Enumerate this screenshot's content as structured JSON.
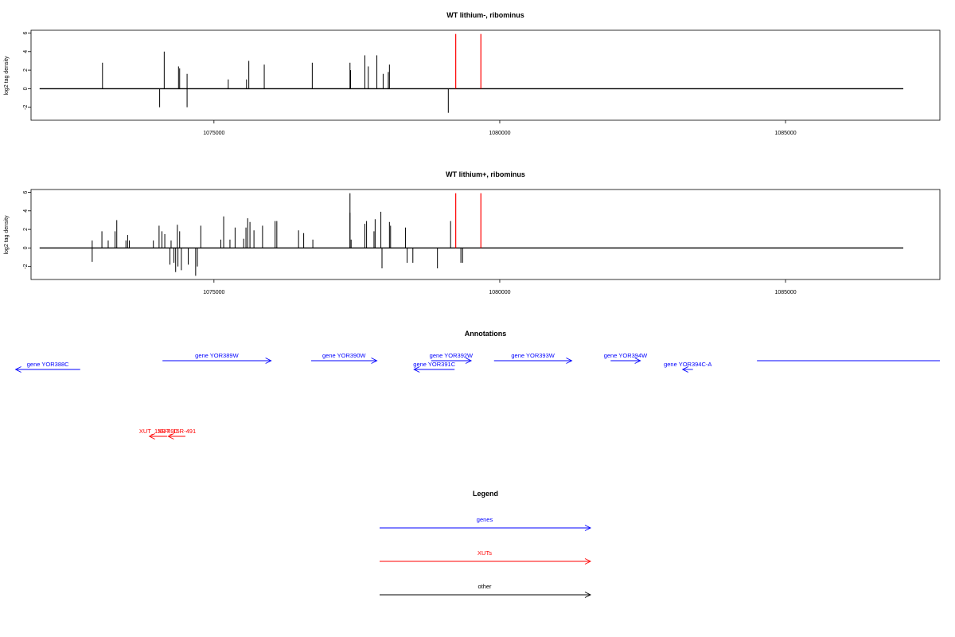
{
  "colors": {
    "genes": "#0000ff",
    "xuts": "#ff0000",
    "other": "#000000",
    "axis": "#000000"
  },
  "chart_data": [
    {
      "type": "bar",
      "title": "WT lithium-, ribominus",
      "ylabel": "log2 tag density",
      "xlim": [
        1071800,
        1087700
      ],
      "ylim": [
        -3.4,
        6.3
      ],
      "yticks": [
        -2,
        0,
        2,
        4,
        6
      ],
      "xticks": [
        1075000,
        1080000,
        1085000
      ],
      "xtick_labels": [
        "1075000",
        "1080000",
        "1085000"
      ],
      "baseline": {
        "from": 1071950,
        "to": 1087060
      },
      "bars": [
        {
          "x": 1073050,
          "y": 2.8
        },
        {
          "x": 1074050,
          "y": -2.0
        },
        {
          "x": 1074130,
          "y": 4.0
        },
        {
          "x": 1074380,
          "y": 2.4
        },
        {
          "x": 1074400,
          "y": 2.2
        },
        {
          "x": 1074530,
          "y": 1.6
        },
        {
          "x": 1074530,
          "y": -2.0
        },
        {
          "x": 1075250,
          "y": 1.0
        },
        {
          "x": 1075570,
          "y": 1.0
        },
        {
          "x": 1075610,
          "y": 3.0
        },
        {
          "x": 1075880,
          "y": 2.6
        },
        {
          "x": 1076720,
          "y": 2.8
        },
        {
          "x": 1077380,
          "y": 2.8
        },
        {
          "x": 1077390,
          "y": 2.0
        },
        {
          "x": 1077640,
          "y": 3.6
        },
        {
          "x": 1077700,
          "y": 2.4
        },
        {
          "x": 1077850,
          "y": 3.6
        },
        {
          "x": 1077960,
          "y": 1.6
        },
        {
          "x": 1078070,
          "y": 2.6
        },
        {
          "x": 1078050,
          "y": 1.8
        },
        {
          "x": 1079100,
          "y": -2.6
        }
      ],
      "highlights": [
        {
          "x": 1079230,
          "y": 5.9
        },
        {
          "x": 1079670,
          "y": 5.9
        }
      ]
    },
    {
      "type": "bar",
      "title": "WT lithium+, ribominus",
      "ylabel": "log2 tag density",
      "xlim": [
        1071800,
        1087700
      ],
      "ylim": [
        -3.4,
        6.3
      ],
      "yticks": [
        -2,
        0,
        2,
        4,
        6
      ],
      "xticks": [
        1075000,
        1080000,
        1085000
      ],
      "xtick_labels": [
        "1075000",
        "1080000",
        "1085000"
      ],
      "baseline": {
        "from": 1071950,
        "to": 1087060
      },
      "bars": [
        {
          "x": 1072870,
          "y": 0.8
        },
        {
          "x": 1072870,
          "y": -1.5
        },
        {
          "x": 1073040,
          "y": 1.8
        },
        {
          "x": 1073150,
          "y": 0.8
        },
        {
          "x": 1073270,
          "y": 1.8
        },
        {
          "x": 1073300,
          "y": 3.0
        },
        {
          "x": 1073460,
          "y": 0.8
        },
        {
          "x": 1073490,
          "y": 1.4
        },
        {
          "x": 1073520,
          "y": 0.8
        },
        {
          "x": 1073940,
          "y": 0.8
        },
        {
          "x": 1074040,
          "y": 2.4
        },
        {
          "x": 1074090,
          "y": 1.8
        },
        {
          "x": 1074140,
          "y": 1.5
        },
        {
          "x": 1074250,
          "y": 0.8
        },
        {
          "x": 1074230,
          "y": -1.8
        },
        {
          "x": 1074300,
          "y": -1.6
        },
        {
          "x": 1074330,
          "y": -2.6
        },
        {
          "x": 1074360,
          "y": 2.5
        },
        {
          "x": 1074370,
          "y": -2.0
        },
        {
          "x": 1074400,
          "y": 1.8
        },
        {
          "x": 1074430,
          "y": -2.4
        },
        {
          "x": 1074550,
          "y": -1.8
        },
        {
          "x": 1074680,
          "y": -3.0
        },
        {
          "x": 1074710,
          "y": -2.0
        },
        {
          "x": 1074770,
          "y": 2.4
        },
        {
          "x": 1075120,
          "y": 0.9
        },
        {
          "x": 1075170,
          "y": 3.4
        },
        {
          "x": 1075280,
          "y": 0.9
        },
        {
          "x": 1075370,
          "y": 2.2
        },
        {
          "x": 1075520,
          "y": 1.0
        },
        {
          "x": 1075560,
          "y": 2.2
        },
        {
          "x": 1075590,
          "y": 3.2
        },
        {
          "x": 1075630,
          "y": 2.8
        },
        {
          "x": 1075700,
          "y": 1.9
        },
        {
          "x": 1075850,
          "y": 2.4
        },
        {
          "x": 1076070,
          "y": 2.9
        },
        {
          "x": 1076100,
          "y": 2.9
        },
        {
          "x": 1076480,
          "y": 1.9
        },
        {
          "x": 1076570,
          "y": 1.6
        },
        {
          "x": 1076730,
          "y": 0.9
        },
        {
          "x": 1077380,
          "y": 5.9
        },
        {
          "x": 1077380,
          "y": 3.8
        },
        {
          "x": 1077400,
          "y": 0.9
        },
        {
          "x": 1077640,
          "y": 2.6
        },
        {
          "x": 1077670,
          "y": 2.9
        },
        {
          "x": 1077800,
          "y": 1.8
        },
        {
          "x": 1077820,
          "y": 3.1
        },
        {
          "x": 1077920,
          "y": 3.9
        },
        {
          "x": 1077940,
          "y": -2.2
        },
        {
          "x": 1078070,
          "y": 2.8
        },
        {
          "x": 1078090,
          "y": 2.4
        },
        {
          "x": 1078350,
          "y": 2.2
        },
        {
          "x": 1078380,
          "y": -1.6
        },
        {
          "x": 1078480,
          "y": -1.6
        },
        {
          "x": 1078910,
          "y": -2.2
        },
        {
          "x": 1079140,
          "y": 2.9
        },
        {
          "x": 1079320,
          "y": -1.6
        },
        {
          "x": 1079350,
          "y": -1.6
        }
      ],
      "highlights": [
        {
          "x": 1079230,
          "y": 5.9
        },
        {
          "x": 1079670,
          "y": 5.9
        }
      ]
    }
  ],
  "annotations": {
    "title": "Annotations",
    "genes": [
      {
        "label": "gene YOR388C",
        "dir": "left",
        "from": 1071530,
        "to": 1072660,
        "row": 2
      },
      {
        "label": "gene YOR389W",
        "dir": "right",
        "from": 1074100,
        "to": 1076000,
        "row": 1
      },
      {
        "label": "gene YOR390W",
        "dir": "right",
        "from": 1076700,
        "to": 1077850,
        "row": 1
      },
      {
        "label": "gene YOR391C",
        "dir": "left",
        "from": 1078500,
        "to": 1079210,
        "row": 2
      },
      {
        "label": "gene YOR392W",
        "dir": "right",
        "from": 1078800,
        "to": 1079500,
        "row": 1
      },
      {
        "label": "gene YOR393W",
        "dir": "right",
        "from": 1079900,
        "to": 1081260,
        "row": 1
      },
      {
        "label": "gene YOR394W",
        "dir": "right",
        "from": 1081940,
        "to": 1082460,
        "row": 1
      },
      {
        "label": "gene YOR394C-A",
        "dir": "left",
        "from": 1083200,
        "to": 1083380,
        "row": 2
      },
      {
        "label": "",
        "dir": "none",
        "from": 1084500,
        "to": 1087700,
        "row": 1
      }
    ],
    "xuts": [
      {
        "label": "XUT_15R-490",
        "dir": "left",
        "from": 1073870,
        "to": 1074180
      },
      {
        "label": "XUT_15R-491",
        "dir": "left",
        "from": 1074200,
        "to": 1074500
      }
    ]
  },
  "legend": {
    "title": "Legend",
    "items": [
      {
        "label": "genes",
        "color": "#0000ff"
      },
      {
        "label": "XUTs",
        "color": "#ff0000"
      },
      {
        "label": "other",
        "color": "#000000"
      }
    ]
  }
}
